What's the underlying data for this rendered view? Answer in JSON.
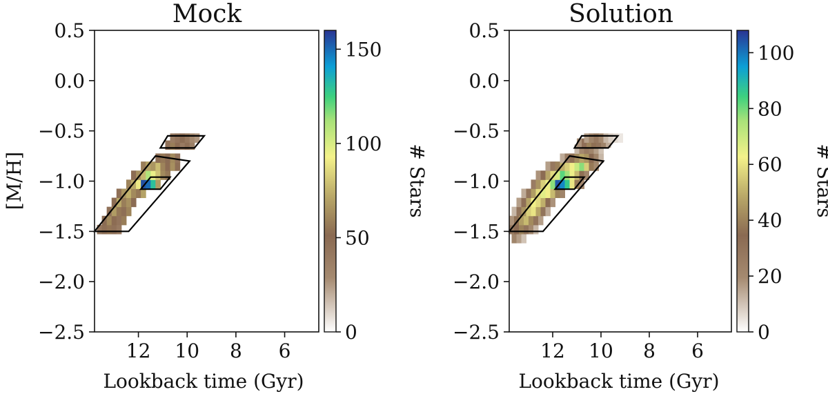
{
  "chart_data": [
    {
      "type": "heatmap",
      "title": "Mock",
      "xlabel": "Lookback time (Gyr)",
      "ylabel": "[M/H]",
      "xlim": [
        13.8,
        4.6
      ],
      "ylim": [
        -2.5,
        0.5
      ],
      "x_ticks": [
        "12",
        "10",
        "8",
        "6"
      ],
      "x_tick_values": [
        12,
        10,
        8,
        6
      ],
      "y_ticks": [
        "0.5",
        "0.0",
        "−0.5",
        "−1.0",
        "−1.5",
        "−2.0",
        "−2.5"
      ],
      "y_tick_values": [
        0.5,
        0.0,
        -0.5,
        -1.0,
        -1.5,
        -2.0,
        -2.5
      ],
      "colorbar": {
        "label": "# Stars",
        "range": [
          0,
          160
        ],
        "ticks": [
          "0",
          "50",
          "100",
          "150"
        ],
        "tick_values": [
          0,
          50,
          100,
          150
        ]
      },
      "regions": [
        {
          "name": "main-band",
          "corners": [
            [
              13.8,
              -1.5
            ],
            [
              12.4,
              -1.5
            ],
            [
              9.9,
              -0.8
            ],
            [
              11.3,
              -0.75
            ]
          ]
        },
        {
          "name": "metal-rich-blob",
          "corners": [
            [
              10.8,
              -0.55
            ],
            [
              9.3,
              -0.55
            ],
            [
              9.7,
              -0.67
            ],
            [
              11.1,
              -0.67
            ]
          ]
        },
        {
          "name": "peak-box",
          "corners": [
            [
              11.9,
              -1.08
            ],
            [
              11.1,
              -1.08
            ],
            [
              10.7,
              -0.96
            ],
            [
              11.5,
              -0.96
            ]
          ]
        }
      ],
      "cells": [
        [
          13.6,
          -1.48,
          42
        ],
        [
          13.4,
          -1.48,
          48
        ],
        [
          13.2,
          -1.48,
          55
        ],
        [
          13.0,
          -1.48,
          46
        ],
        [
          12.8,
          -1.48,
          40
        ],
        [
          13.4,
          -1.39,
          50
        ],
        [
          13.2,
          -1.39,
          62
        ],
        [
          13.0,
          -1.39,
          52
        ],
        [
          12.8,
          -1.39,
          44
        ],
        [
          12.6,
          -1.39,
          58
        ],
        [
          13.2,
          -1.3,
          46
        ],
        [
          13.0,
          -1.3,
          68
        ],
        [
          12.8,
          -1.3,
          56
        ],
        [
          12.6,
          -1.3,
          48
        ],
        [
          12.4,
          -1.3,
          60
        ],
        [
          13.0,
          -1.21,
          52
        ],
        [
          12.8,
          -1.21,
          72
        ],
        [
          12.6,
          -1.21,
          58
        ],
        [
          12.4,
          -1.21,
          64
        ],
        [
          12.2,
          -1.21,
          50
        ],
        [
          12.8,
          -1.12,
          48
        ],
        [
          12.6,
          -1.12,
          66
        ],
        [
          12.4,
          -1.12,
          74
        ],
        [
          12.2,
          -1.12,
          62
        ],
        [
          12.0,
          -1.12,
          56
        ],
        [
          11.8,
          -1.12,
          70
        ],
        [
          12.4,
          -1.03,
          60
        ],
        [
          12.2,
          -1.03,
          72
        ],
        [
          12.0,
          -1.03,
          90
        ],
        [
          11.8,
          -1.03,
          155
        ],
        [
          11.6,
          -1.03,
          150
        ],
        [
          11.4,
          -1.03,
          130
        ],
        [
          11.2,
          -1.03,
          68
        ],
        [
          12.2,
          -0.94,
          52
        ],
        [
          12.0,
          -0.94,
          64
        ],
        [
          11.8,
          -0.94,
          76
        ],
        [
          11.6,
          -0.94,
          110
        ],
        [
          11.4,
          -0.94,
          95
        ],
        [
          11.2,
          -0.94,
          80
        ],
        [
          11.0,
          -0.94,
          62
        ],
        [
          10.8,
          -0.94,
          56
        ],
        [
          11.8,
          -0.85,
          58
        ],
        [
          11.6,
          -0.85,
          70
        ],
        [
          11.4,
          -0.85,
          66
        ],
        [
          11.2,
          -0.85,
          78
        ],
        [
          11.0,
          -0.85,
          60
        ],
        [
          10.8,
          -0.85,
          52
        ],
        [
          10.6,
          -0.85,
          64
        ],
        [
          10.4,
          -0.85,
          48
        ],
        [
          11.2,
          -0.77,
          48
        ],
        [
          11.0,
          -0.77,
          56
        ],
        [
          10.8,
          -0.77,
          50
        ],
        [
          10.6,
          -0.77,
          62
        ],
        [
          10.4,
          -0.77,
          44
        ],
        [
          10.8,
          -0.64,
          46
        ],
        [
          10.6,
          -0.64,
          58
        ],
        [
          10.4,
          -0.64,
          52
        ],
        [
          10.2,
          -0.64,
          40
        ],
        [
          10.0,
          -0.64,
          48
        ],
        [
          9.8,
          -0.64,
          36
        ],
        [
          10.6,
          -0.57,
          38
        ],
        [
          10.4,
          -0.57,
          44
        ],
        [
          10.2,
          -0.57,
          50
        ],
        [
          10.0,
          -0.57,
          42
        ],
        [
          9.8,
          -0.57,
          30
        ],
        [
          9.6,
          -0.57,
          26
        ]
      ]
    },
    {
      "type": "heatmap",
      "title": "Solution",
      "xlabel": "Lookback time (Gyr)",
      "ylabel": "",
      "xlim": [
        13.8,
        4.6
      ],
      "ylim": [
        -2.5,
        0.5
      ],
      "x_ticks": [
        "12",
        "10",
        "8",
        "6"
      ],
      "x_tick_values": [
        12,
        10,
        8,
        6
      ],
      "y_ticks": [
        "0.5",
        "0.0",
        "−0.5",
        "−1.0",
        "−1.5",
        "−2.0",
        "−2.5"
      ],
      "y_tick_values": [
        0.5,
        0.0,
        -0.5,
        -1.0,
        -1.5,
        -2.0,
        -2.5
      ],
      "colorbar": {
        "label": "# Stars",
        "range": [
          0,
          108
        ],
        "ticks": [
          "0",
          "20",
          "40",
          "60",
          "80",
          "100"
        ],
        "tick_values": [
          0,
          20,
          40,
          60,
          80,
          100
        ]
      },
      "regions": [
        {
          "name": "main-band",
          "corners": [
            [
              13.8,
              -1.5
            ],
            [
              12.4,
              -1.5
            ],
            [
              9.9,
              -0.8
            ],
            [
              11.3,
              -0.75
            ]
          ]
        },
        {
          "name": "metal-rich-blob",
          "corners": [
            [
              10.8,
              -0.55
            ],
            [
              9.3,
              -0.55
            ],
            [
              9.7,
              -0.67
            ],
            [
              11.1,
              -0.67
            ]
          ]
        },
        {
          "name": "peak-box",
          "corners": [
            [
              11.9,
              -1.08
            ],
            [
              11.1,
              -1.08
            ],
            [
              10.7,
              -0.96
            ],
            [
              11.5,
              -0.96
            ]
          ]
        }
      ],
      "cells": [
        [
          13.6,
          -1.57,
          22
        ],
        [
          13.4,
          -1.57,
          16
        ],
        [
          13.2,
          -1.57,
          10
        ],
        [
          13.7,
          -1.48,
          28
        ],
        [
          13.5,
          -1.48,
          34
        ],
        [
          13.3,
          -1.48,
          40
        ],
        [
          13.1,
          -1.48,
          30
        ],
        [
          12.9,
          -1.48,
          20
        ],
        [
          12.7,
          -1.48,
          12
        ],
        [
          13.7,
          -1.39,
          18
        ],
        [
          13.5,
          -1.39,
          36
        ],
        [
          13.3,
          -1.39,
          46
        ],
        [
          13.1,
          -1.39,
          52
        ],
        [
          12.9,
          -1.39,
          42
        ],
        [
          12.7,
          -1.39,
          30
        ],
        [
          12.5,
          -1.39,
          16
        ],
        [
          13.6,
          -1.3,
          12
        ],
        [
          13.4,
          -1.3,
          30
        ],
        [
          13.2,
          -1.3,
          44
        ],
        [
          13.0,
          -1.3,
          56
        ],
        [
          12.8,
          -1.3,
          60
        ],
        [
          12.6,
          -1.3,
          48
        ],
        [
          12.4,
          -1.3,
          30
        ],
        [
          12.2,
          -1.3,
          14
        ],
        [
          13.4,
          -1.21,
          16
        ],
        [
          13.2,
          -1.21,
          32
        ],
        [
          13.0,
          -1.21,
          48
        ],
        [
          12.8,
          -1.21,
          62
        ],
        [
          12.6,
          -1.21,
          58
        ],
        [
          12.4,
          -1.21,
          50
        ],
        [
          12.2,
          -1.21,
          34
        ],
        [
          12.0,
          -1.21,
          18
        ],
        [
          13.2,
          -1.12,
          14
        ],
        [
          13.0,
          -1.12,
          30
        ],
        [
          12.8,
          -1.12,
          46
        ],
        [
          12.6,
          -1.12,
          58
        ],
        [
          12.4,
          -1.12,
          66
        ],
        [
          12.2,
          -1.12,
          62
        ],
        [
          12.0,
          -1.12,
          52
        ],
        [
          11.8,
          -1.12,
          40
        ],
        [
          11.6,
          -1.12,
          22
        ],
        [
          12.8,
          -1.03,
          26
        ],
        [
          12.6,
          -1.03,
          44
        ],
        [
          12.4,
          -1.03,
          56
        ],
        [
          12.2,
          -1.03,
          64
        ],
        [
          12.0,
          -1.03,
          78
        ],
        [
          11.8,
          -1.03,
          104
        ],
        [
          11.6,
          -1.03,
          98
        ],
        [
          11.4,
          -1.03,
          86
        ],
        [
          11.2,
          -1.03,
          60
        ],
        [
          11.0,
          -1.03,
          38
        ],
        [
          10.8,
          -1.03,
          20
        ],
        [
          12.6,
          -0.94,
          18
        ],
        [
          12.4,
          -0.94,
          34
        ],
        [
          12.2,
          -0.94,
          48
        ],
        [
          12.0,
          -0.94,
          58
        ],
        [
          11.8,
          -0.94,
          68
        ],
        [
          11.6,
          -0.94,
          82
        ],
        [
          11.4,
          -0.94,
          76
        ],
        [
          11.2,
          -0.94,
          64
        ],
        [
          11.0,
          -0.94,
          52
        ],
        [
          10.8,
          -0.94,
          36
        ],
        [
          10.6,
          -0.94,
          22
        ],
        [
          12.2,
          -0.85,
          16
        ],
        [
          12.0,
          -0.85,
          28
        ],
        [
          11.8,
          -0.85,
          40
        ],
        [
          11.6,
          -0.85,
          50
        ],
        [
          11.4,
          -0.85,
          56
        ],
        [
          11.2,
          -0.85,
          62
        ],
        [
          11.0,
          -0.85,
          70
        ],
        [
          10.8,
          -0.85,
          78
        ],
        [
          10.6,
          -0.85,
          56
        ],
        [
          10.4,
          -0.85,
          38
        ],
        [
          10.2,
          -0.85,
          20
        ],
        [
          11.6,
          -0.77,
          14
        ],
        [
          11.4,
          -0.77,
          26
        ],
        [
          11.2,
          -0.77,
          36
        ],
        [
          11.0,
          -0.77,
          42
        ],
        [
          10.8,
          -0.77,
          48
        ],
        [
          10.6,
          -0.77,
          44
        ],
        [
          10.4,
          -0.77,
          34
        ],
        [
          10.2,
          -0.77,
          22
        ],
        [
          10.0,
          -0.77,
          12
        ],
        [
          11.0,
          -0.68,
          12
        ],
        [
          10.8,
          -0.68,
          20
        ],
        [
          10.6,
          -0.68,
          26
        ],
        [
          10.4,
          -0.68,
          22
        ],
        [
          10.2,
          -0.68,
          16
        ],
        [
          10.0,
          -0.68,
          10
        ],
        [
          10.9,
          -0.62,
          18
        ],
        [
          10.7,
          -0.62,
          32
        ],
        [
          10.5,
          -0.62,
          40
        ],
        [
          10.3,
          -0.62,
          36
        ],
        [
          10.1,
          -0.62,
          30
        ],
        [
          9.9,
          -0.62,
          22
        ],
        [
          9.7,
          -0.62,
          14
        ],
        [
          10.6,
          -0.57,
          16
        ],
        [
          10.4,
          -0.57,
          22
        ],
        [
          10.2,
          -0.57,
          28
        ],
        [
          10.0,
          -0.57,
          20
        ],
        [
          9.8,
          -0.57,
          12
        ],
        [
          9.6,
          -0.57,
          8
        ],
        [
          9.4,
          -0.57,
          6
        ],
        [
          9.2,
          -0.57,
          4
        ]
      ]
    }
  ]
}
